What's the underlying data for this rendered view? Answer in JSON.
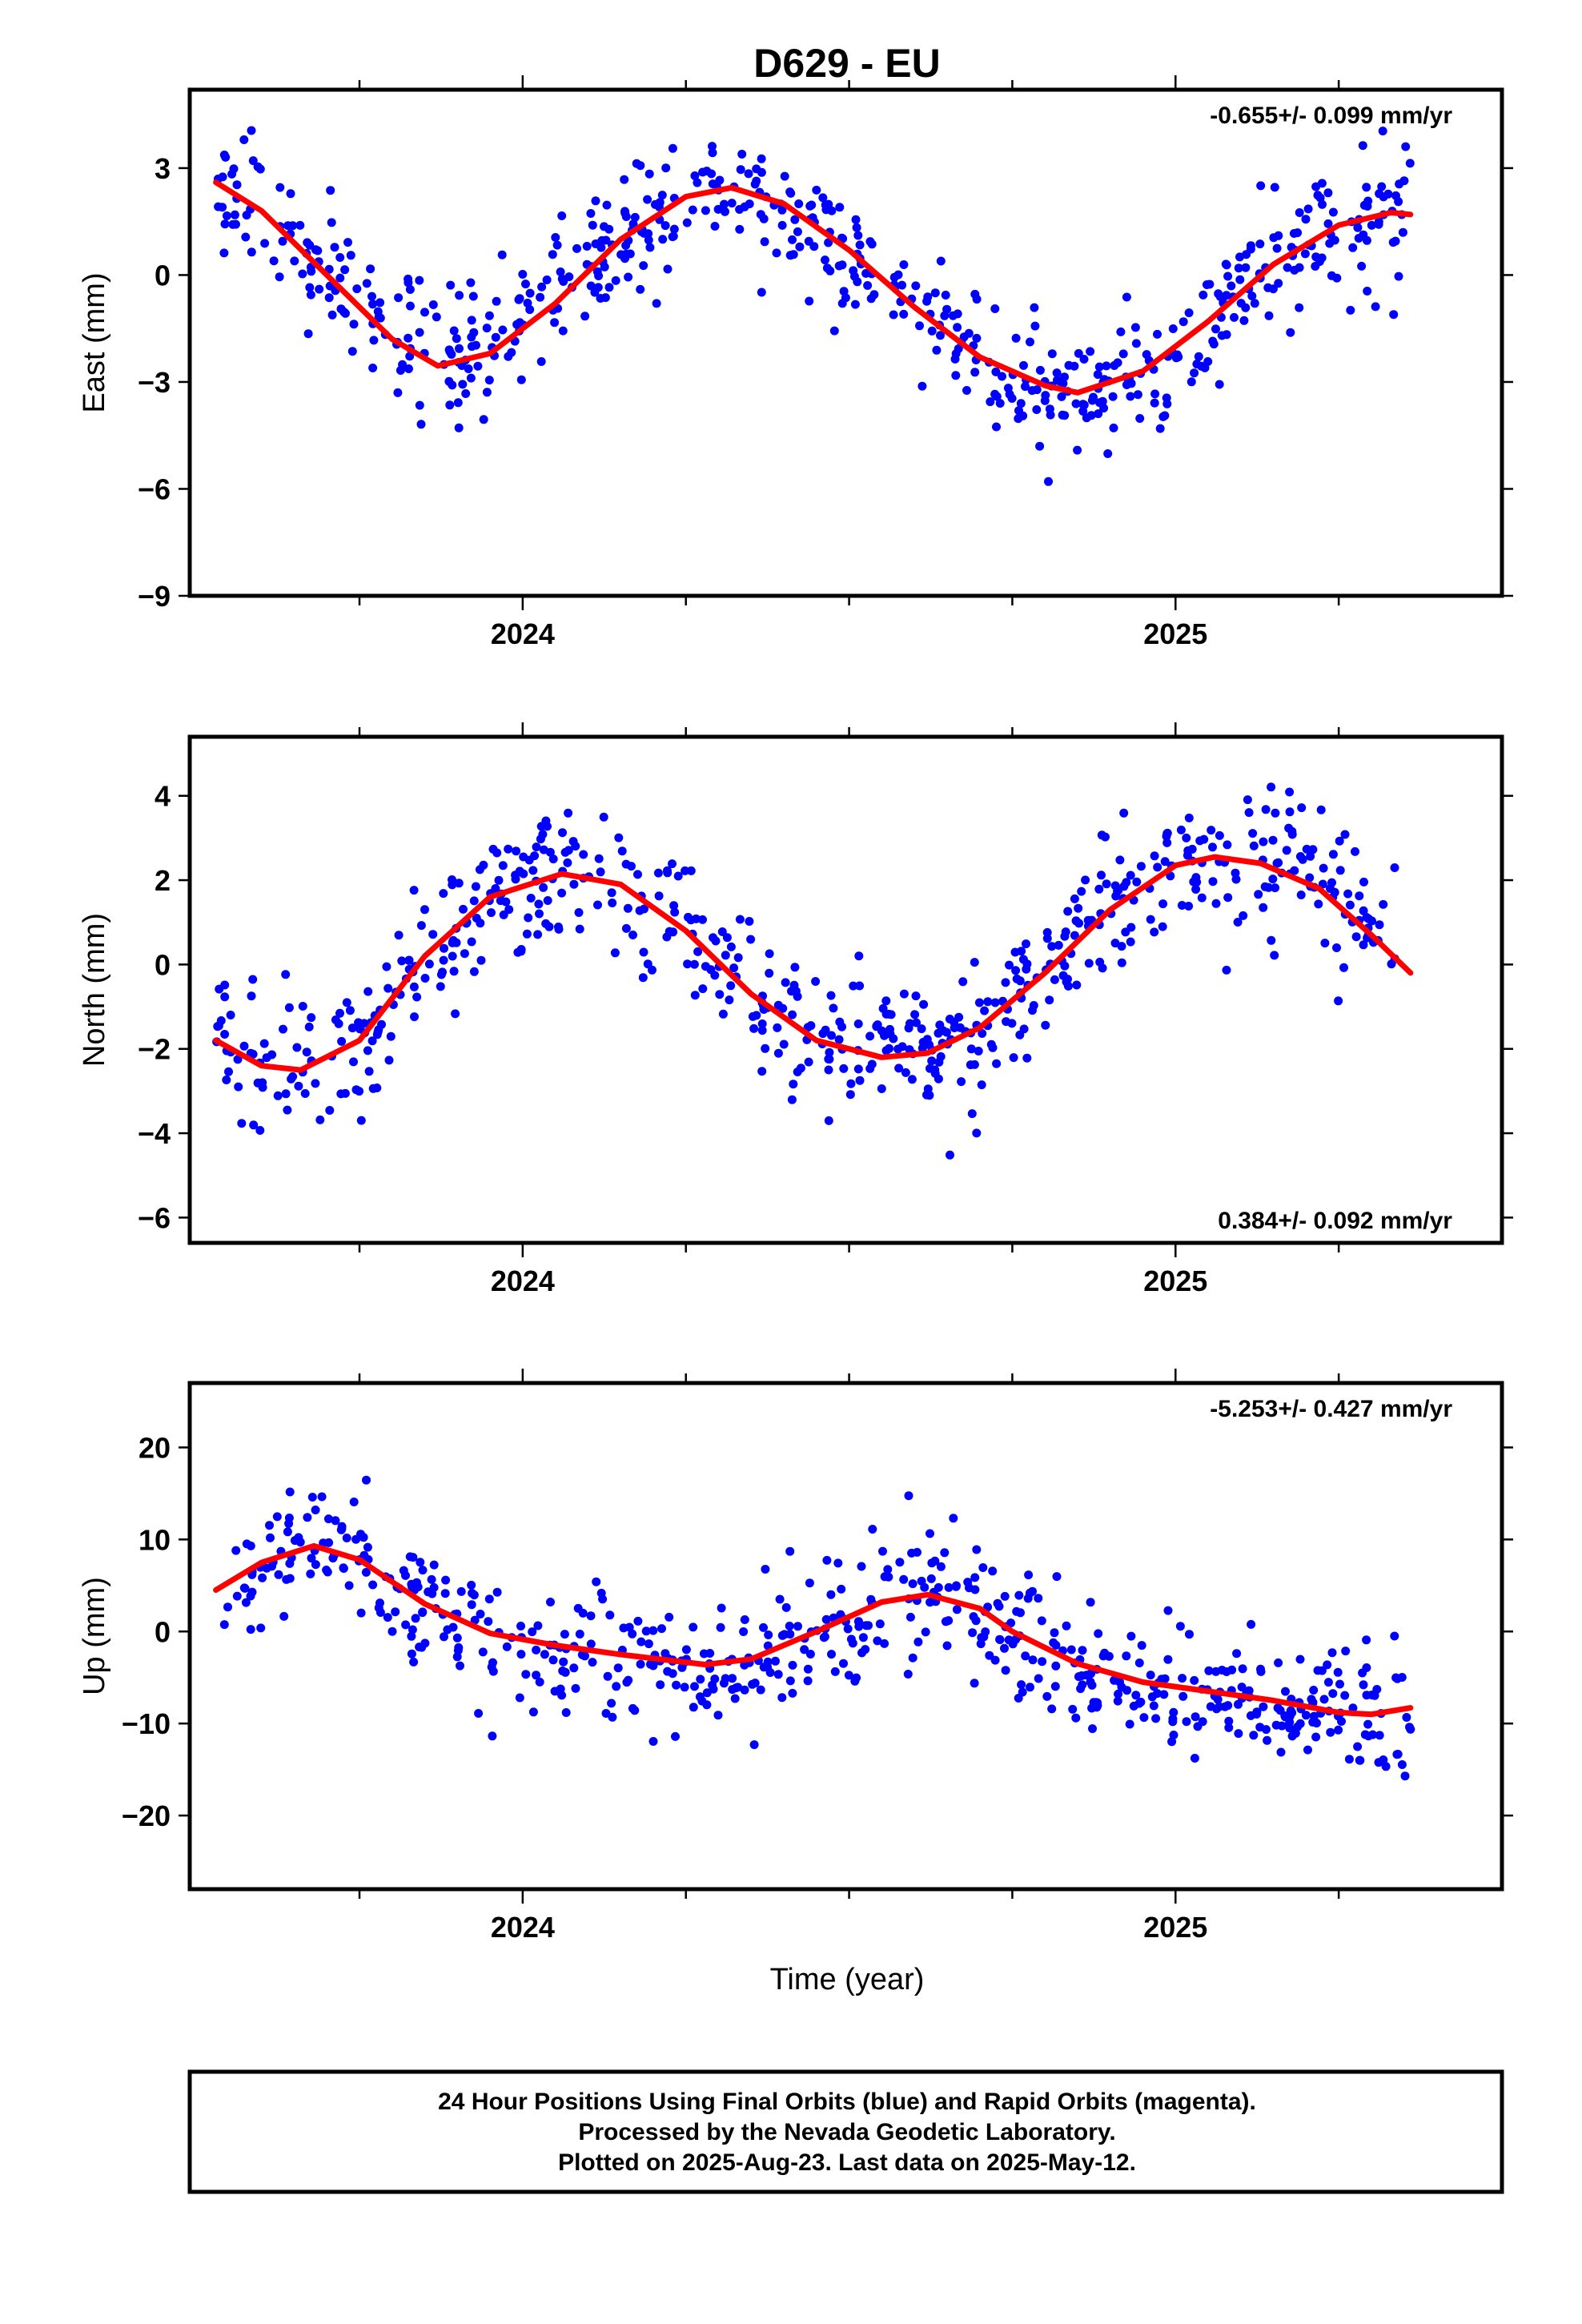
{
  "title": "D629 - EU",
  "xlabel": "Time (year)",
  "footer": {
    "line1": "24 Hour Positions Using Final Orbits (blue) and Rapid Orbits (magenta).",
    "line2": "Processed by the Nevada Geodetic Laboratory.",
    "line3": "Plotted on 2025-Aug-23. Last data on 2025-May-12."
  },
  "colors": {
    "points": "#0000ff",
    "fit": "#ff0000",
    "frame": "#000000"
  },
  "chart_data": [
    {
      "type": "scatter",
      "panel": "east",
      "ylabel": "East (mm)",
      "rate_label": "-0.655+/- 0.099 mm/yr",
      "rate_position": "top-right",
      "xlim": [
        2023.49,
        2025.5
      ],
      "ylim": [
        -9,
        5.2
      ],
      "yticks": [
        3,
        0,
        -3,
        -6,
        -9
      ],
      "ytick_labels": [
        "3",
        "0",
        "−3",
        "−6",
        "−9"
      ],
      "xticks": [
        2024,
        2025
      ],
      "xtick_labels": [
        "2024",
        "2025"
      ],
      "minor_xticks": [
        2023.75,
        2024.25,
        2024.5,
        2024.75,
        2025.25
      ],
      "data_range": [
        2023.53,
        2025.36
      ],
      "fit": {
        "x": [
          2023.53,
          2023.6,
          2023.7,
          2023.8,
          2023.87,
          2023.95,
          2024.05,
          2024.15,
          2024.25,
          2024.32,
          2024.4,
          2024.5,
          2024.6,
          2024.7,
          2024.8,
          2024.85,
          2024.95,
          2025.05,
          2025.15,
          2025.25,
          2025.33,
          2025.36
        ],
        "y": [
          2.6,
          1.8,
          0.0,
          -1.8,
          -2.55,
          -2.2,
          -0.8,
          1.0,
          2.2,
          2.45,
          2.0,
          0.7,
          -0.9,
          -2.3,
          -3.1,
          -3.3,
          -2.7,
          -1.3,
          0.3,
          1.4,
          1.75,
          1.7
        ]
      }
    },
    {
      "type": "scatter",
      "panel": "north",
      "ylabel": "North (mm)",
      "rate_label": "0.384+/- 0.092 mm/yr",
      "rate_position": "bottom-right",
      "xlim": [
        2023.49,
        2025.5
      ],
      "ylim": [
        -6.6,
        5.4
      ],
      "yticks": [
        4,
        2,
        0,
        -2,
        -4,
        -6
      ],
      "ytick_labels": [
        "4",
        "2",
        "0",
        "−2",
        "−4",
        "−6"
      ],
      "xticks": [
        2024,
        2025
      ],
      "xtick_labels": [
        "2024",
        "2025"
      ],
      "minor_xticks": [
        2023.75,
        2024.25,
        2024.5,
        2024.75,
        2025.25
      ],
      "data_range": [
        2023.53,
        2025.36
      ],
      "fit": {
        "x": [
          2023.53,
          2023.6,
          2023.66,
          2023.75,
          2023.85,
          2023.95,
          2024.06,
          2024.15,
          2024.25,
          2024.35,
          2024.45,
          2024.55,
          2024.62,
          2024.7,
          2024.8,
          2024.9,
          2025.0,
          2025.06,
          2025.13,
          2025.22,
          2025.3,
          2025.36
        ],
        "y": [
          -1.8,
          -2.4,
          -2.5,
          -1.8,
          0.2,
          1.6,
          2.15,
          1.9,
          0.8,
          -0.7,
          -1.8,
          -2.2,
          -2.1,
          -1.5,
          -0.2,
          1.3,
          2.35,
          2.55,
          2.4,
          1.8,
          0.7,
          -0.2
        ]
      }
    },
    {
      "type": "scatter",
      "panel": "up",
      "ylabel": "Up (mm)",
      "rate_label": "-5.253+/- 0.427 mm/yr",
      "rate_position": "top-right",
      "xlim": [
        2023.49,
        2025.5
      ],
      "ylim": [
        -28,
        27
      ],
      "yticks": [
        20,
        10,
        0,
        -10,
        -20
      ],
      "ytick_labels": [
        "20",
        "10",
        "0",
        "−10",
        "−20"
      ],
      "xticks": [
        2024,
        2025
      ],
      "xtick_labels": [
        "2024",
        "2025"
      ],
      "minor_xticks": [
        2023.75,
        2024.25,
        2024.5,
        2024.75,
        2025.25
      ],
      "data_range": [
        2023.53,
        2025.36
      ],
      "fit": {
        "x": [
          2023.53,
          2023.6,
          2023.68,
          2023.75,
          2023.85,
          2023.95,
          2024.05,
          2024.15,
          2024.28,
          2024.35,
          2024.45,
          2024.55,
          2024.62,
          2024.7,
          2024.75,
          2024.85,
          2024.95,
          2025.05,
          2025.15,
          2025.25,
          2025.3,
          2025.36
        ],
        "y": [
          4.5,
          7.5,
          9.3,
          7.8,
          3.0,
          -0.2,
          -1.5,
          -2.5,
          -3.6,
          -3.0,
          0.0,
          3.2,
          4.0,
          2.5,
          0.0,
          -3.5,
          -5.5,
          -6.5,
          -7.5,
          -8.8,
          -9.0,
          -8.3
        ]
      }
    }
  ]
}
